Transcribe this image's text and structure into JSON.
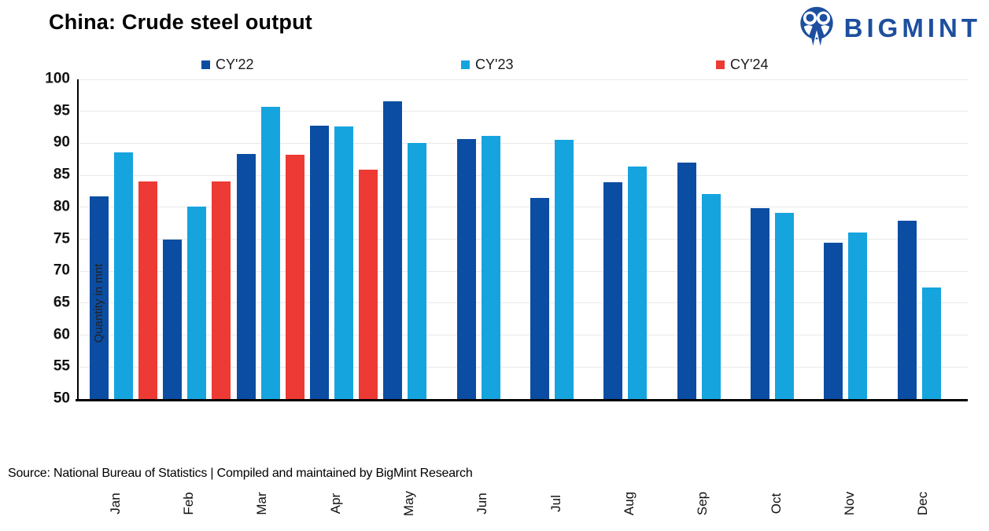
{
  "header": {
    "title": "China: Crude steel output",
    "brand": "BIGMINT"
  },
  "chart_data": {
    "type": "bar",
    "title": "China: Crude steel output",
    "xlabel": "",
    "ylabel": "Quantity in mnt",
    "ylim": [
      50,
      100
    ],
    "ytick_step": 5,
    "grid": true,
    "legend_position": "top",
    "categories": [
      "Jan",
      "Feb",
      "Mar",
      "Apr",
      "May",
      "Jun",
      "Jul",
      "Aug",
      "Sep",
      "Oct",
      "Nov",
      "Dec"
    ],
    "series": [
      {
        "name": "CY'22",
        "color": "#0B4DA2",
        "values": [
          81.7,
          75.0,
          88.3,
          92.8,
          96.6,
          90.7,
          81.4,
          83.9,
          87.0,
          79.8,
          74.5,
          77.9
        ]
      },
      {
        "name": "CY'23",
        "color": "#16A4DF",
        "values": [
          88.6,
          80.1,
          95.7,
          92.6,
          90.1,
          91.1,
          90.6,
          86.4,
          82.1,
          79.1,
          76.1,
          67.4
        ]
      },
      {
        "name": "CY'24",
        "color": "#EE3A34",
        "values": [
          84.0,
          84.0,
          88.2,
          85.9,
          null,
          null,
          null,
          null,
          null,
          null,
          null,
          null
        ]
      }
    ]
  },
  "footer": {
    "source": "Source: National Bureau of Statistics | Compiled and maintained by BigMint Research"
  },
  "colors": {
    "brand_blue": "#1D4F9E",
    "axis": "#000000",
    "gridline": "#E9E9E9"
  }
}
